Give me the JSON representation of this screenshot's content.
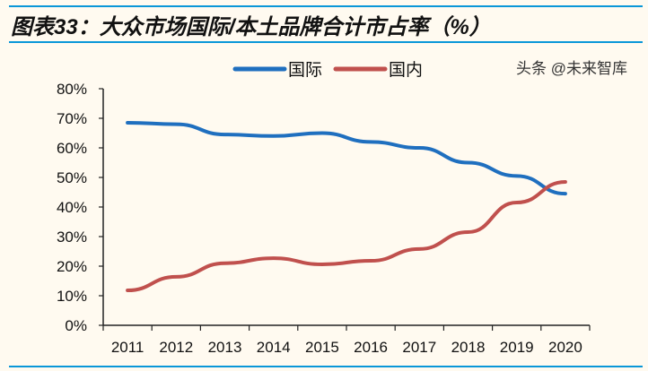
{
  "title": "图表33：大众市场国际/本土品牌合计市占率（%）",
  "watermark": "头条 @未来智库",
  "chart_data": {
    "type": "line",
    "title": "",
    "xlabel": "",
    "ylabel": "",
    "categories": [
      "2011",
      "2012",
      "2013",
      "2014",
      "2015",
      "2016",
      "2017",
      "2018",
      "2019",
      "2020"
    ],
    "ylim": [
      0,
      80
    ],
    "yticks": [
      "0%",
      "10%",
      "20%",
      "30%",
      "40%",
      "50%",
      "60%",
      "70%",
      "80%"
    ],
    "grid": false,
    "legend": "top",
    "series": [
      {
        "name": "国际",
        "color": "#1f6fbf",
        "values": [
          68.5,
          68,
          64.5,
          64,
          65,
          62,
          60,
          55,
          50.5,
          44.5
        ]
      },
      {
        "name": "国内",
        "color": "#c0504d",
        "values": [
          11.8,
          16.4,
          21,
          22.7,
          20.6,
          21.8,
          25.8,
          31.5,
          41.5,
          48.5
        ]
      }
    ]
  }
}
